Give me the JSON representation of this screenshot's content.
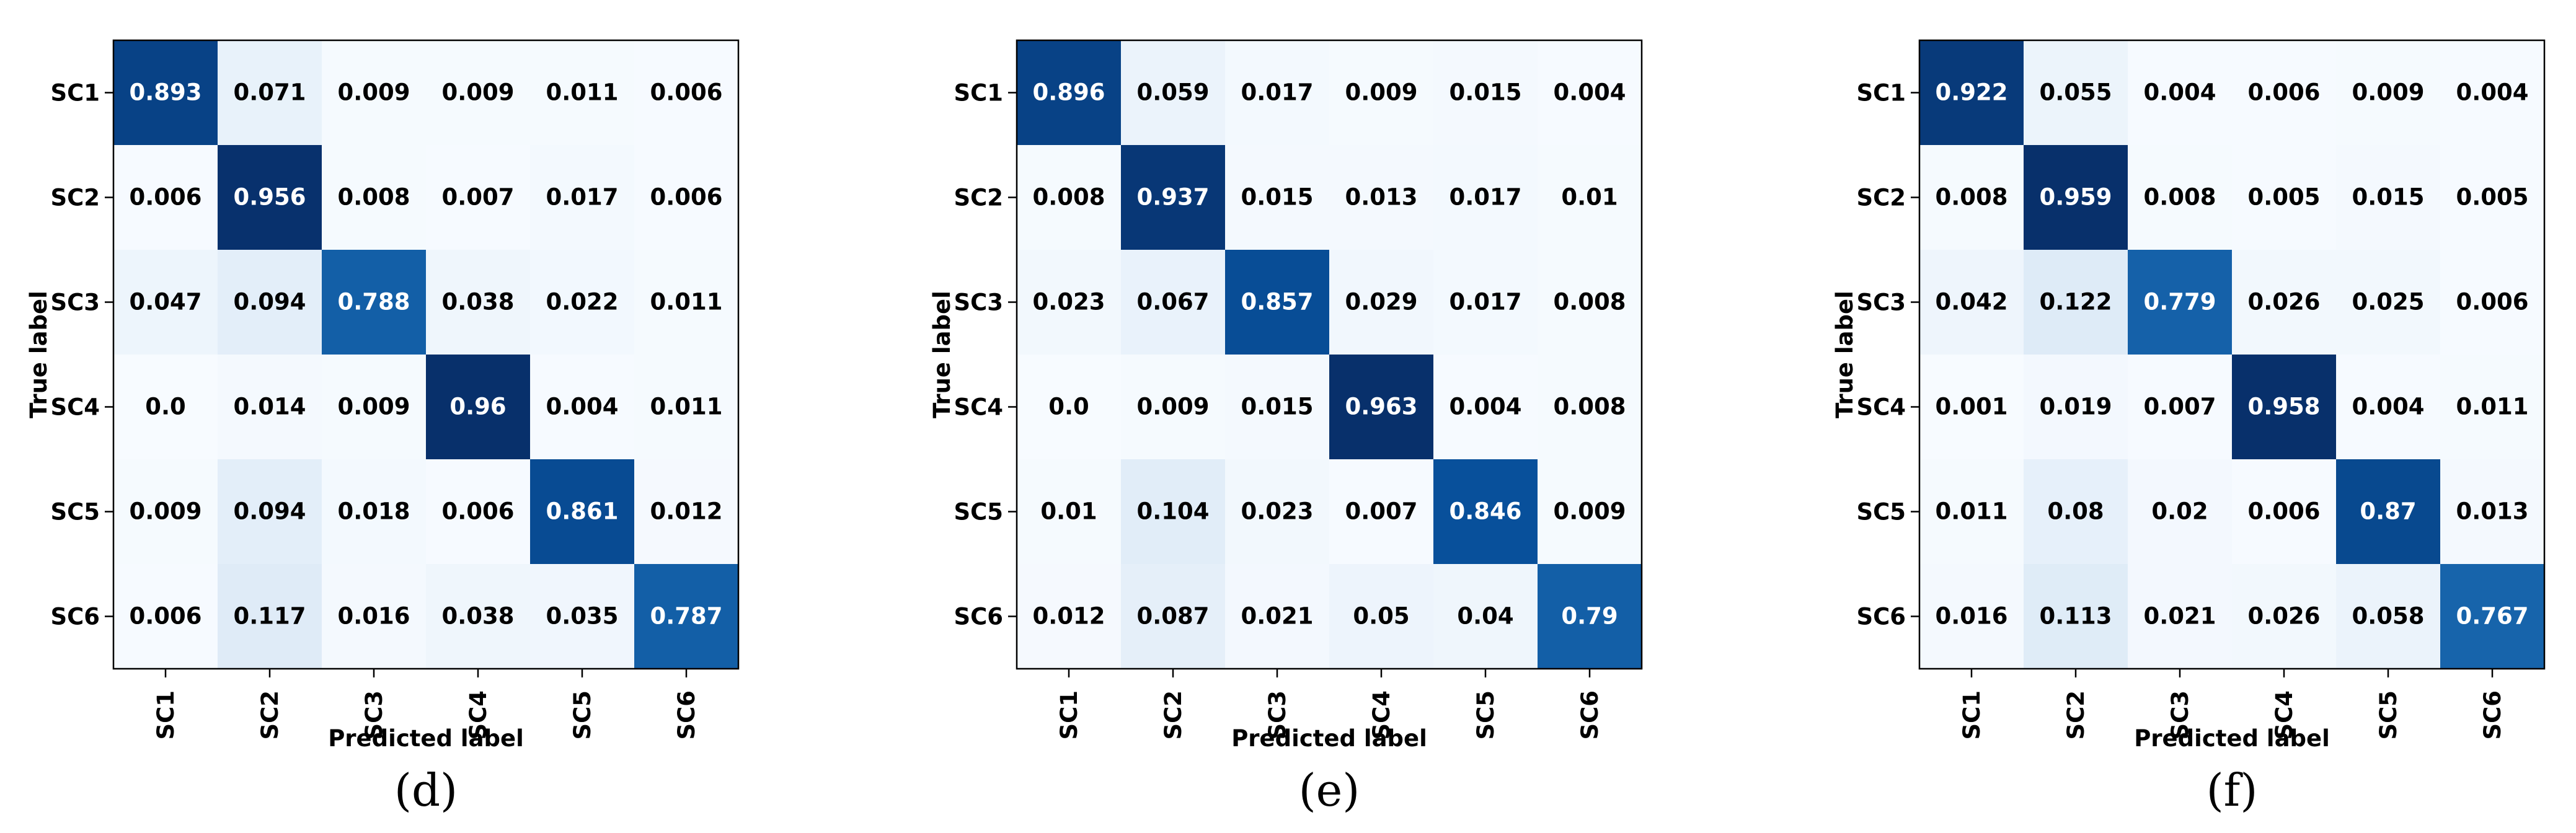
{
  "chart_data": [
    {
      "type": "heatmap",
      "caption": "(d)",
      "xlabel": "Predicted label",
      "ylabel": "True label",
      "x_categories": [
        "SC1",
        "SC2",
        "SC3",
        "SC4",
        "SC5",
        "SC6"
      ],
      "y_categories": [
        "SC1",
        "SC2",
        "SC3",
        "SC4",
        "SC5",
        "SC6"
      ],
      "colormap": "Blues",
      "values": [
        [
          "0.893",
          "0.071",
          "0.009",
          "0.009",
          "0.011",
          "0.006"
        ],
        [
          "0.006",
          "0.956",
          "0.008",
          "0.007",
          "0.017",
          "0.006"
        ],
        [
          "0.047",
          "0.094",
          "0.788",
          "0.038",
          "0.022",
          "0.011"
        ],
        [
          "0.0",
          "0.014",
          "0.009",
          "0.96",
          "0.004",
          "0.011"
        ],
        [
          "0.009",
          "0.094",
          "0.018",
          "0.006",
          "0.861",
          "0.012"
        ],
        [
          "0.006",
          "0.117",
          "0.016",
          "0.038",
          "0.035",
          "0.787"
        ]
      ]
    },
    {
      "type": "heatmap",
      "caption": "(e)",
      "xlabel": "Predicted label",
      "ylabel": "True label",
      "x_categories": [
        "SC1",
        "SC2",
        "SC3",
        "SC4",
        "SC5",
        "SC6"
      ],
      "y_categories": [
        "SC1",
        "SC2",
        "SC3",
        "SC4",
        "SC5",
        "SC6"
      ],
      "colormap": "Blues",
      "values": [
        [
          "0.896",
          "0.059",
          "0.017",
          "0.009",
          "0.015",
          "0.004"
        ],
        [
          "0.008",
          "0.937",
          "0.015",
          "0.013",
          "0.017",
          "0.01"
        ],
        [
          "0.023",
          "0.067",
          "0.857",
          "0.029",
          "0.017",
          "0.008"
        ],
        [
          "0.0",
          "0.009",
          "0.015",
          "0.963",
          "0.004",
          "0.008"
        ],
        [
          "0.01",
          "0.104",
          "0.023",
          "0.007",
          "0.846",
          "0.009"
        ],
        [
          "0.012",
          "0.087",
          "0.021",
          "0.05",
          "0.04",
          "0.79"
        ]
      ]
    },
    {
      "type": "heatmap",
      "caption": "(f)",
      "xlabel": "Predicted label",
      "ylabel": "True label",
      "x_categories": [
        "SC1",
        "SC2",
        "SC3",
        "SC4",
        "SC5",
        "SC6"
      ],
      "y_categories": [
        "SC1",
        "SC2",
        "SC3",
        "SC4",
        "SC5",
        "SC6"
      ],
      "colormap": "Blues",
      "values": [
        [
          "0.922",
          "0.055",
          "0.004",
          "0.006",
          "0.009",
          "0.004"
        ],
        [
          "0.008",
          "0.959",
          "0.008",
          "0.005",
          "0.015",
          "0.005"
        ],
        [
          "0.042",
          "0.122",
          "0.779",
          "0.026",
          "0.025",
          "0.006"
        ],
        [
          "0.001",
          "0.019",
          "0.007",
          "0.958",
          "0.004",
          "0.011"
        ],
        [
          "0.011",
          "0.08",
          "0.02",
          "0.006",
          "0.87",
          "0.013"
        ],
        [
          "0.016",
          "0.113",
          "0.021",
          "0.026",
          "0.058",
          "0.767"
        ]
      ]
    }
  ]
}
